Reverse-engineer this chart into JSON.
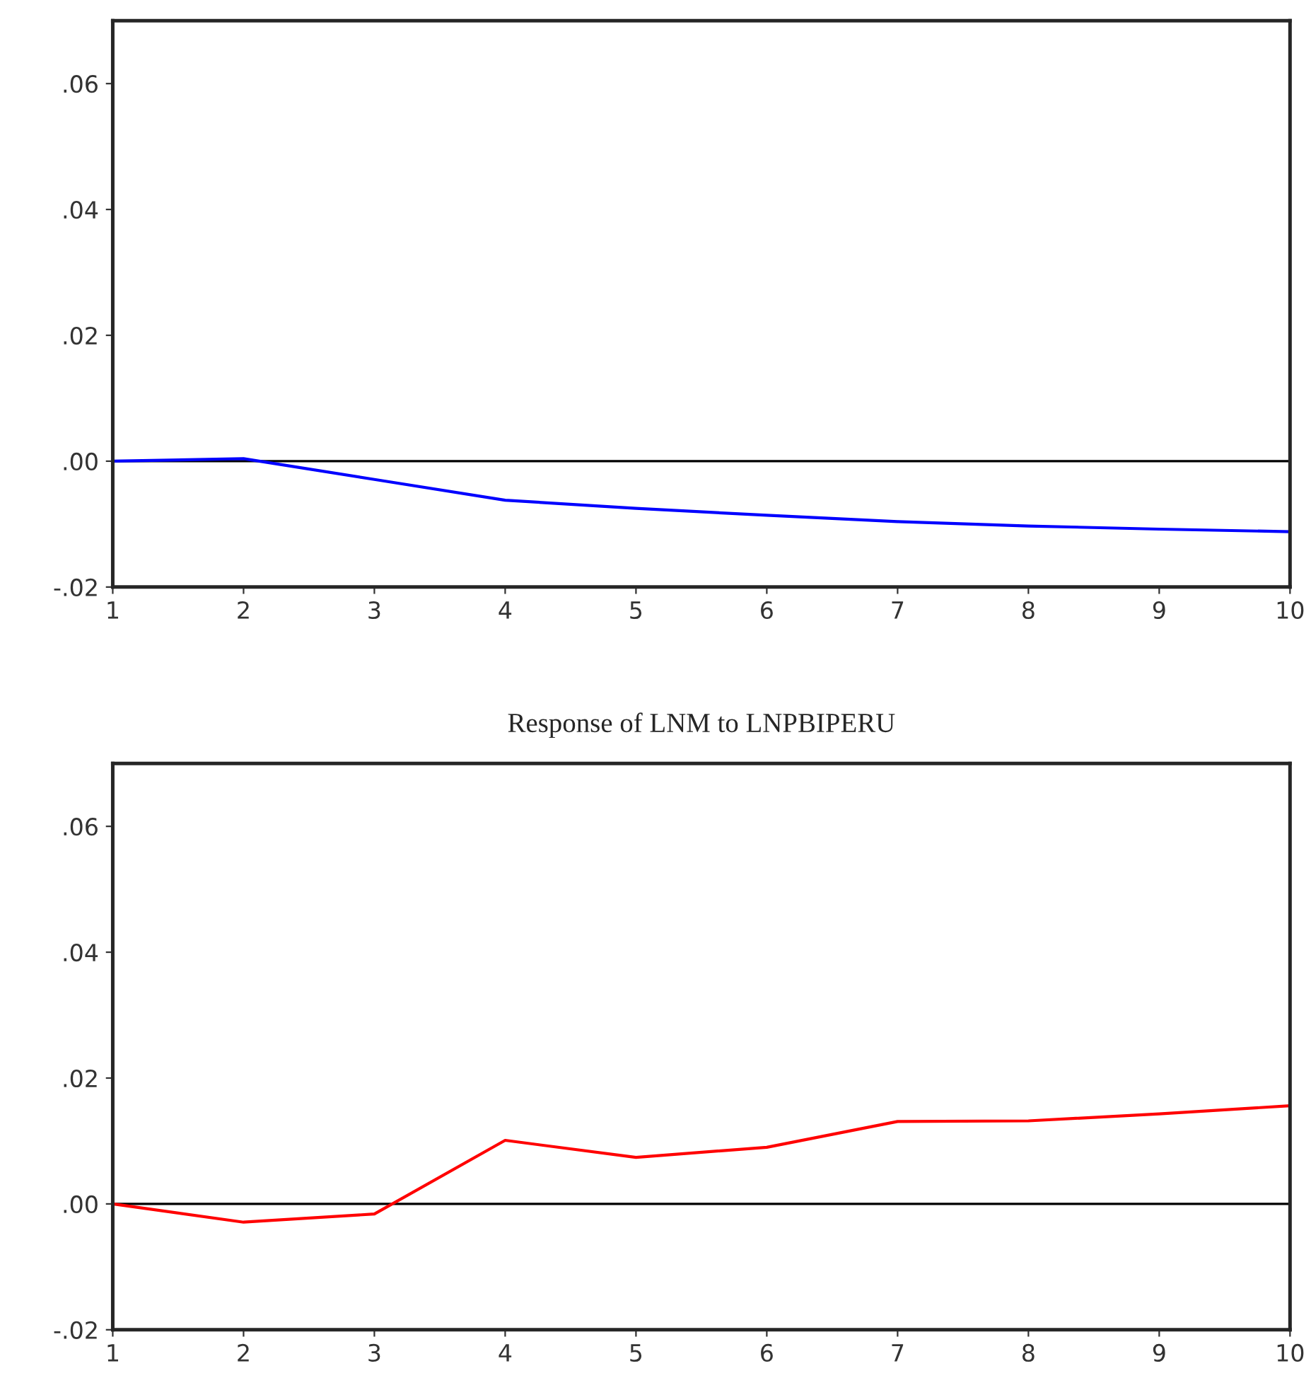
{
  "chart_data": [
    {
      "type": "line",
      "x": [
        1,
        2,
        3,
        4,
        5,
        6,
        7,
        8,
        9,
        10
      ],
      "series": [
        {
          "color": "#0000ff",
          "values": [
            0,
            0.0004,
            -0.0029,
            -0.0062,
            -0.0075,
            -0.0086,
            -0.0096,
            -0.0103,
            -0.0108,
            -0.0112
          ]
        }
      ],
      "xlim": [
        1,
        10
      ],
      "xticks": [
        1,
        2,
        3,
        4,
        5,
        6,
        7,
        8,
        9,
        10
      ],
      "ylim": [
        -0.02,
        0.07
      ],
      "yticks": [
        {
          "value": -0.02,
          "label": "-.02"
        },
        {
          "value": 0,
          "label": ".00"
        },
        {
          "value": 0.02,
          "label": ".02"
        },
        {
          "value": 0.04,
          "label": ".04"
        },
        {
          "value": 0.06,
          "label": ".06"
        }
      ],
      "ref_lines": [
        {
          "axis": "y",
          "value": 0,
          "color": "#000000"
        }
      ],
      "grid": false,
      "legend": false
    },
    {
      "type": "line",
      "title": "Response of LNM to LNPBIPERU",
      "x": [
        1,
        2,
        3,
        4,
        5,
        6,
        7,
        8,
        9,
        10
      ],
      "series": [
        {
          "color": "#ff0000",
          "values": [
            0,
            -0.0029,
            -0.0016,
            0.0101,
            0.0074,
            0.009,
            0.0131,
            0.0132,
            0.0143,
            0.0156
          ]
        }
      ],
      "xlim": [
        1,
        10
      ],
      "xticks": [
        1,
        2,
        3,
        4,
        5,
        6,
        7,
        8,
        9,
        10
      ],
      "ylim": [
        -0.02,
        0.07
      ],
      "yticks": [
        {
          "value": -0.02,
          "label": "-.02"
        },
        {
          "value": 0,
          "label": ".00"
        },
        {
          "value": 0.02,
          "label": ".02"
        },
        {
          "value": 0.04,
          "label": ".04"
        },
        {
          "value": 0.06,
          "label": ".06"
        }
      ],
      "ref_lines": [
        {
          "axis": "y",
          "value": 0,
          "color": "#000000"
        }
      ],
      "grid": false,
      "legend": false
    }
  ]
}
